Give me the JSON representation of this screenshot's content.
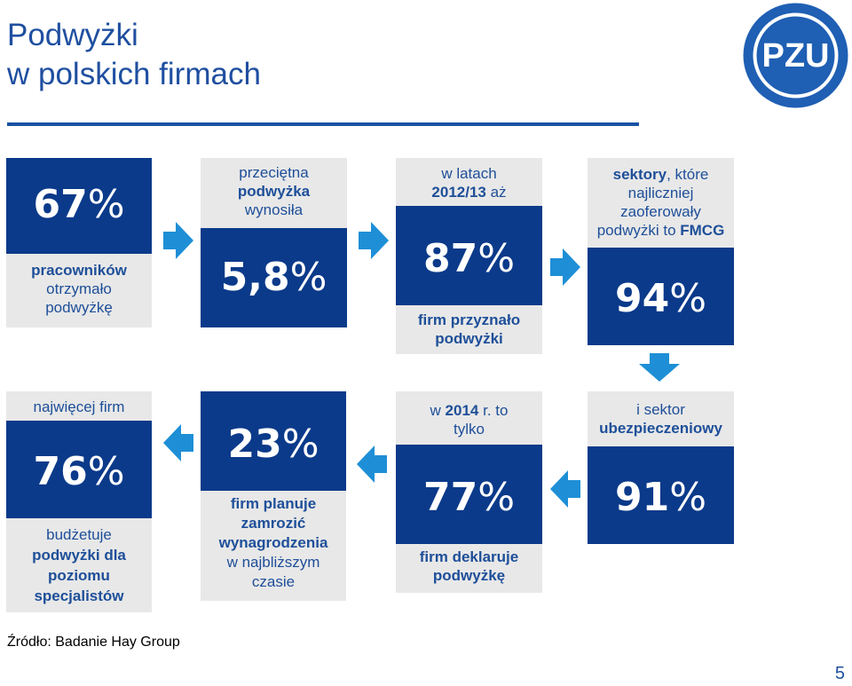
{
  "header": {
    "title_line1": "Podwyżki",
    "title_line2": "w polskich firmach",
    "logo_text": "PZU"
  },
  "cards": {
    "c1": {
      "value": "67",
      "percent": "%",
      "cap_bold": "pracowników",
      "cap_line2": "otrzymało",
      "cap_line3": "podwyżkę"
    },
    "c2": {
      "top1": "przeciętna",
      "top2_bold": "podwyżka",
      "top3": "wynosiła",
      "value": "5,8",
      "percent": "%"
    },
    "c3": {
      "top1": "w latach",
      "top2_bold": "2012/13",
      "top2_rest": " aż",
      "value": "87",
      "percent": "%",
      "cap1": "firm przyznało",
      "cap2": "podwyżki"
    },
    "c4": {
      "top1_bold": "sektory",
      "top1_rest": ", które",
      "top2": "najliczniej",
      "top3": "zaoferowały",
      "top4_a": "podwyżki to ",
      "top4_bold": "FMCG",
      "value": "94",
      "percent": "%"
    },
    "c5": {
      "top1": "najwięcej firm",
      "value": "76",
      "percent": "%",
      "cap1": "budżetuje",
      "cap2_bold": "podwyżki dla",
      "cap3_bold": "poziomu",
      "cap4_bold": "specjalistów"
    },
    "c6": {
      "value": "23",
      "percent": "%",
      "cap1_bold": "firm planuje",
      "cap2_bold": "zamrozić",
      "cap3_bold": "wynagrodzenia",
      "cap4": "w najbliższym",
      "cap5": "czasie"
    },
    "c7": {
      "top1_a": "w ",
      "top1_bold": "2014",
      "top1_rest": " r. to",
      "top2": "tylko",
      "value": "77",
      "percent": "%",
      "cap1_bold": "firm deklaruje",
      "cap2_bold": "podwyżkę"
    },
    "c8": {
      "top1": "i sektor",
      "top2_bold": "ubezpieczeniowy",
      "value": "91",
      "percent": "%"
    }
  },
  "footer": {
    "source": "Źródło: Badanie Hay Group",
    "page_number": "5"
  },
  "colors": {
    "navy": "#0b3a8a",
    "grey": "#e8e8e8",
    "arrow": "#1e8fd6",
    "text_blue": "#1e4f99"
  },
  "icons": {
    "arrow_right": "arrow-right-icon",
    "arrow_left": "arrow-left-icon",
    "arrow_down": "arrow-down-icon"
  }
}
